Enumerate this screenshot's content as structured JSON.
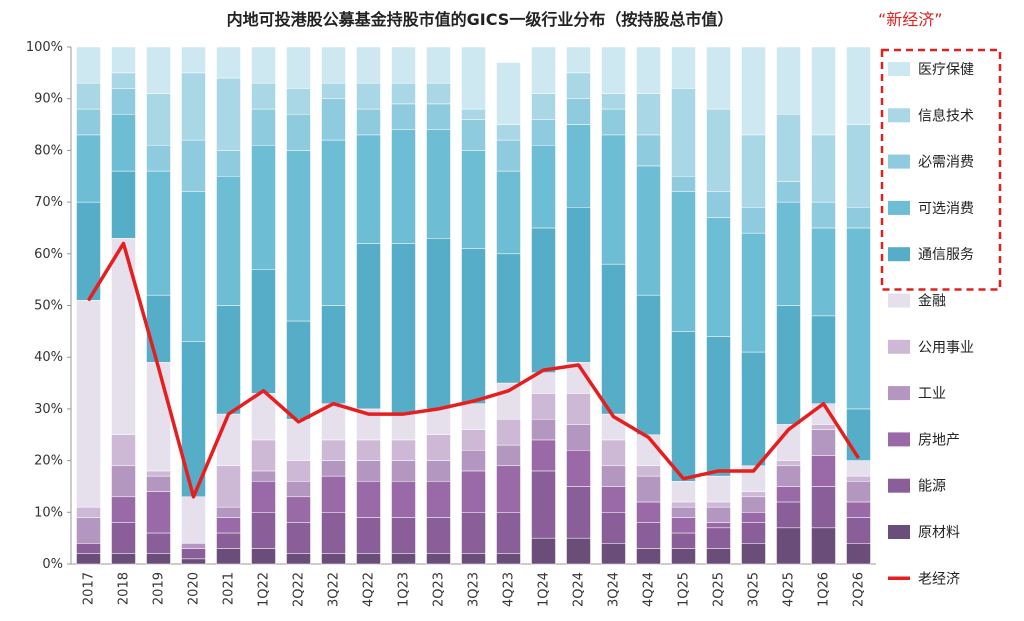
{
  "chart_data": {
    "type": "bar",
    "stacked": true,
    "title": "内地可投港股公募基金持股市值的GICS一级行业分布（按持股总市值）",
    "annotation": "“新经济”",
    "categories": [
      "2017",
      "2018",
      "2019",
      "2020",
      "2021",
      "1Q22",
      "2Q22",
      "3Q22",
      "4Q22",
      "1Q23",
      "2Q23",
      "3Q23",
      "4Q23",
      "1Q24",
      "2Q24",
      "3Q24",
      "4Q24",
      "1Q25",
      "2Q25",
      "3Q25",
      "4Q25",
      "1Q26",
      "2Q26"
    ],
    "y_ticks": [
      "0%",
      "10%",
      "20%",
      "30%",
      "40%",
      "50%",
      "60%",
      "70%",
      "80%",
      "90%",
      "100%"
    ],
    "ylim": [
      0,
      100
    ],
    "grid": false,
    "legend_position": "right",
    "series": [
      {
        "name": "原材料",
        "color": "#6b4d7a",
        "values": [
          2,
          2,
          2,
          1,
          3,
          3,
          2,
          2,
          2,
          2,
          2,
          2,
          2,
          5,
          5,
          4,
          3,
          3,
          3,
          4,
          7,
          7,
          4
        ]
      },
      {
        "name": "能源",
        "color": "#8a5f99",
        "values": [
          2,
          6,
          4,
          2,
          3,
          7,
          6,
          8,
          7,
          7,
          7,
          8,
          8,
          13,
          10,
          6,
          5,
          3,
          4,
          4,
          5,
          8,
          5
        ]
      },
      {
        "name": "房地产",
        "color": "#9a6aa8",
        "values": [
          0,
          5,
          8,
          0,
          3,
          6,
          5,
          7,
          7,
          7,
          7,
          8,
          9,
          6,
          7,
          5,
          4,
          3,
          1,
          2,
          3,
          6,
          3
        ]
      },
      {
        "name": "工业",
        "color": "#b497c0",
        "values": [
          5,
          6,
          3,
          1,
          2,
          2,
          3,
          3,
          4,
          4,
          4,
          4,
          4,
          4,
          5,
          4,
          5,
          2,
          3,
          3,
          4,
          5,
          4
        ]
      },
      {
        "name": "公用事业",
        "color": "#cdb9d6",
        "values": [
          2,
          6,
          1,
          0,
          8,
          6,
          4,
          4,
          4,
          4,
          5,
          4,
          5,
          5,
          6,
          5,
          2,
          1,
          1,
          1,
          1,
          1,
          1
        ]
      },
      {
        "name": "金融",
        "color": "#e6dfec",
        "values": [
          40,
          38,
          21,
          9,
          10,
          9,
          8,
          7,
          6,
          5,
          5,
          5,
          7,
          4,
          6,
          5,
          6,
          4,
          5,
          5,
          7,
          4,
          3
        ]
      },
      {
        "name": "通信服务",
        "color": "#56adc8",
        "values": [
          19,
          13,
          13,
          30,
          21,
          24,
          19,
          19,
          32,
          33,
          33,
          30,
          25,
          28,
          30,
          29,
          27,
          29,
          27,
          22,
          23,
          17,
          10
        ]
      },
      {
        "name": "可选消费",
        "color": "#6dbdd4",
        "values": [
          13,
          11,
          24,
          29,
          25,
          24,
          33,
          32,
          21,
          22,
          21,
          19,
          16,
          16,
          16,
          25,
          25,
          27,
          23,
          23,
          20,
          17,
          35
        ]
      },
      {
        "name": "必需消费",
        "color": "#8fcbde",
        "values": [
          5,
          5,
          5,
          10,
          5,
          7,
          7,
          8,
          5,
          5,
          5,
          6,
          6,
          5,
          5,
          5,
          6,
          3,
          5,
          5,
          4,
          5,
          4
        ]
      },
      {
        "name": "信息技术",
        "color": "#a9d7e6",
        "values": [
          5,
          3,
          10,
          13,
          14,
          5,
          5,
          3,
          5,
          4,
          4,
          2,
          3,
          5,
          5,
          3,
          8,
          17,
          16,
          14,
          13,
          13,
          16
        ]
      },
      {
        "name": "医疗保健",
        "color": "#cde8f1",
        "values": [
          7,
          5,
          9,
          5,
          6,
          7,
          8,
          7,
          7,
          7,
          7,
          12,
          12,
          9,
          5,
          9,
          9,
          8,
          12,
          17,
          13,
          17,
          15
        ]
      }
    ],
    "line_series": {
      "name": "老经济",
      "color": "#e61e1e",
      "values": [
        51,
        62,
        38,
        13,
        29,
        33.5,
        27.5,
        31,
        29,
        29,
        30,
        31.5,
        33.5,
        37.5,
        38.5,
        28.5,
        24.5,
        16.5,
        18,
        18,
        26,
        31,
        20.5
      ]
    },
    "new_economy_legend_group": [
      "医疗保健",
      "信息技术",
      "必需消费",
      "可选消费",
      "通信服务"
    ],
    "legend_order": [
      "医疗保健",
      "信息技术",
      "必需消费",
      "可选消费",
      "通信服务",
      "金融",
      "公用事业",
      "工业",
      "房地产",
      "能源",
      "原材料",
      "老经济"
    ]
  }
}
